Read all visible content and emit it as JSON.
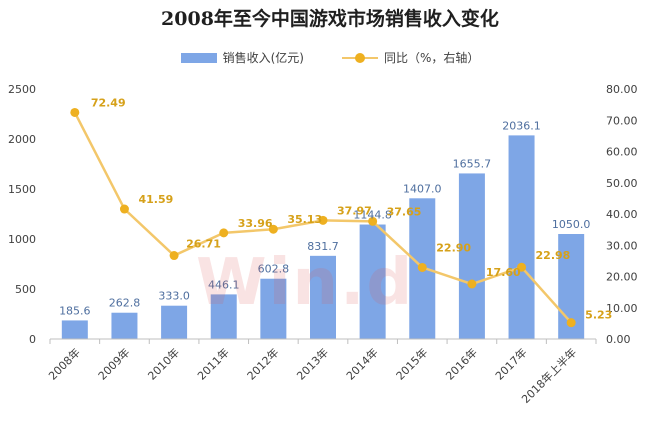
{
  "chart_data": {
    "type": "bar+line",
    "title": "2008年至今中国游戏市场销售收入变化",
    "categories": [
      "2008年",
      "2009年",
      "2010年",
      "2011年",
      "2012年",
      "2013年",
      "2014年",
      "2015年",
      "2016年",
      "2017年",
      "2018年上半年"
    ],
    "series": [
      {
        "name": "销售收入(亿元)",
        "type": "bar",
        "axis": "left",
        "color": "#7ea6e6",
        "values": [
          185.6,
          262.8,
          333.0,
          446.1,
          602.8,
          831.7,
          1144.8,
          1407.0,
          1655.7,
          2036.1,
          1050.0
        ],
        "labels": [
          "185.6",
          "262.8",
          "333.0",
          "446.1",
          "602.8",
          "831.7",
          "1144.8",
          "1407.0",
          "1655.7",
          "2036.1",
          "1050.0"
        ],
        "label_color": "#4f6f9f"
      },
      {
        "name": "同比（%，右轴）",
        "type": "line",
        "axis": "right",
        "color": "#f3c76a",
        "marker_color": "#eeb020",
        "values": [
          72.49,
          41.59,
          26.71,
          33.96,
          35.13,
          37.97,
          37.65,
          22.9,
          17.6,
          22.98,
          5.23
        ],
        "labels": [
          "72.49",
          "41.59",
          "26.71",
          "33.96",
          "35.13",
          "37.97",
          "37.65",
          "22.90",
          "17.60",
          "22.98",
          "5.23"
        ],
        "label_color": "#d6a11a"
      }
    ],
    "y_left": {
      "min": 0,
      "max": 2500,
      "ticks": [
        "0",
        "500",
        "1000",
        "1500",
        "2000",
        "2500"
      ]
    },
    "y_right": {
      "min": 0,
      "max": 80,
      "ticks": [
        "0.00",
        "10.00",
        "20.00",
        "30.00",
        "40.00",
        "50.00",
        "60.00",
        "70.00",
        "80.00"
      ]
    },
    "grid": false,
    "legend_position": "top-center"
  },
  "watermark": "Win.d"
}
